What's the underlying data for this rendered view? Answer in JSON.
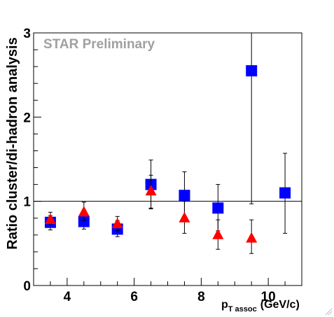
{
  "chart_data": {
    "type": "scatter",
    "title": "",
    "watermark": "STAR Preliminary",
    "ylabel": "Ratio cluster/di-hadron analysis",
    "xlabel": {
      "main": "p",
      "subscript": "T assoc",
      "unit": "(GeV/c)"
    },
    "xlim": [
      3,
      11
    ],
    "ylim": [
      0,
      3
    ],
    "x_ticks": [
      4,
      6,
      8,
      10
    ],
    "y_ticks": [
      0,
      1,
      2,
      3
    ],
    "reference_line_y": 1,
    "grid": false,
    "legend": "none",
    "series": [
      {
        "marker": "square",
        "color": "#0000ff",
        "points": [
          {
            "x": 3.5,
            "y": 0.75,
            "err_low": 0.09,
            "err_high": 0.12
          },
          {
            "x": 4.5,
            "y": 0.76,
            "err_low": 0.09,
            "err_high": 0.12
          },
          {
            "x": 5.5,
            "y": 0.67,
            "err_low": 0.09,
            "err_high": 0.1
          },
          {
            "x": 6.5,
            "y": 1.2,
            "err_low": 0.28,
            "err_high": 0.29
          },
          {
            "x": 7.5,
            "y": 1.07,
            "err_low": 0.28,
            "err_high": 0.28
          },
          {
            "x": 8.5,
            "y": 0.92,
            "err_low": 0.27,
            "err_high": 0.28
          },
          {
            "x": 9.5,
            "y": 2.55,
            "err_low": 1.58,
            "err_high": 0.45
          },
          {
            "x": 10.5,
            "y": 1.1,
            "err_low": 0.48,
            "err_high": 0.47
          }
        ]
      },
      {
        "marker": "triangle",
        "color": "#ff0000",
        "points": [
          {
            "x": 3.5,
            "y": 0.78,
            "err_low": 0.05,
            "err_high": 0.05
          },
          {
            "x": 4.5,
            "y": 0.87,
            "err_low": 0.1,
            "err_high": 0.12
          },
          {
            "x": 5.5,
            "y": 0.73,
            "err_low": 0.08,
            "err_high": 0.09
          },
          {
            "x": 6.5,
            "y": 1.12,
            "err_low": 0.21,
            "err_high": 0.19
          },
          {
            "x": 7.5,
            "y": 0.8,
            "err_low": 0.18,
            "err_high": 0.2
          },
          {
            "x": 8.5,
            "y": 0.6,
            "err_low": 0.17,
            "err_high": 0.18
          },
          {
            "x": 9.5,
            "y": 0.56,
            "err_low": 0.18,
            "err_high": 0.22
          }
        ]
      }
    ]
  }
}
